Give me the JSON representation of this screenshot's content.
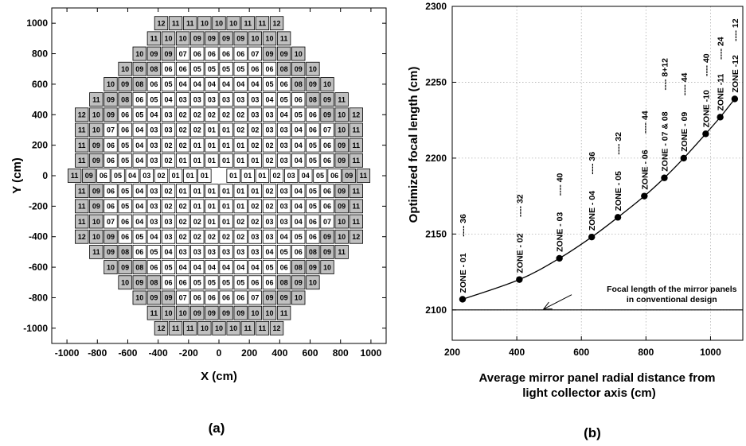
{
  "chart_data": [
    {
      "type": "heatmap",
      "panel_label": "(a)",
      "xlabel": "X  (cm)",
      "ylabel": "Y (cm)",
      "xlim": [
        -1100,
        1100
      ],
      "ylim": [
        -1100,
        1100
      ],
      "x_ticks": [
        "-1000",
        "-800",
        "-600",
        "-400",
        "-200",
        "0",
        "200",
        "400",
        "600",
        "800",
        "1000"
      ],
      "y_ticks": [
        "1000",
        "800",
        "600",
        "400",
        "200",
        "0",
        "-200",
        "-400",
        "-600",
        "-800",
        "-1000"
      ],
      "cell_pitch_cm": 95,
      "rows": [
        {
          "y": 1000,
          "cells": [
            "12",
            "11",
            "11",
            "10",
            "10",
            "10",
            "11",
            "11",
            "12"
          ]
        },
        {
          "y": 900,
          "cells": [
            "11",
            "10",
            "10",
            "09",
            "09",
            "09",
            "09",
            "10",
            "10",
            "11"
          ]
        },
        {
          "y": 800,
          "cells": [
            "10",
            "09",
            "09",
            "07",
            "06",
            "06",
            "06",
            "06",
            "07",
            "09",
            "09",
            "10"
          ]
        },
        {
          "y": 700,
          "cells": [
            "10",
            "09",
            "08",
            "06",
            "06",
            "05",
            "05",
            "05",
            "05",
            "06",
            "06",
            "08",
            "09",
            "10"
          ]
        },
        {
          "y": 600,
          "cells": [
            "10",
            "09",
            "08",
            "06",
            "05",
            "04",
            "04",
            "04",
            "04",
            "04",
            "04",
            "05",
            "06",
            "08",
            "09",
            "10"
          ]
        },
        {
          "y": 500,
          "cells": [
            "11",
            "09",
            "08",
            "06",
            "05",
            "04",
            "03",
            "03",
            "03",
            "03",
            "03",
            "03",
            "04",
            "05",
            "06",
            "08",
            "09",
            "11"
          ]
        },
        {
          "y": 400,
          "cells": [
            "12",
            "10",
            "09",
            "06",
            "05",
            "04",
            "03",
            "02",
            "02",
            "02",
            "02",
            "02",
            "03",
            "03",
            "04",
            "05",
            "06",
            "09",
            "10",
            "12"
          ]
        },
        {
          "y": 300,
          "cells": [
            "11",
            "10",
            "07",
            "06",
            "04",
            "03",
            "03",
            "02",
            "02",
            "01",
            "01",
            "02",
            "02",
            "03",
            "03",
            "04",
            "06",
            "07",
            "10",
            "11"
          ]
        },
        {
          "y": 200,
          "cells": [
            "11",
            "09",
            "06",
            "05",
            "04",
            "03",
            "02",
            "02",
            "01",
            "01",
            "01",
            "01",
            "02",
            "02",
            "03",
            "04",
            "05",
            "06",
            "09",
            "11"
          ]
        },
        {
          "y": 100,
          "cells": [
            "11",
            "09",
            "06",
            "05",
            "04",
            "03",
            "02",
            "01",
            "01",
            "01",
            "01",
            "01",
            "01",
            "02",
            "03",
            "04",
            "05",
            "06",
            "09",
            "11"
          ]
        },
        {
          "y": 0,
          "cells": [
            "11",
            "09",
            "06",
            "05",
            "04",
            "03",
            "02",
            "01",
            "01",
            "01",
            "",
            "01",
            "01",
            "01",
            "02",
            "03",
            "04",
            "05",
            "06",
            "09",
            "11"
          ]
        },
        {
          "y": -100,
          "cells": [
            "11",
            "09",
            "06",
            "05",
            "04",
            "03",
            "02",
            "01",
            "01",
            "01",
            "01",
            "01",
            "01",
            "02",
            "03",
            "04",
            "05",
            "06",
            "09",
            "11"
          ]
        },
        {
          "y": -200,
          "cells": [
            "11",
            "09",
            "06",
            "05",
            "04",
            "03",
            "02",
            "02",
            "01",
            "01",
            "01",
            "01",
            "02",
            "02",
            "03",
            "04",
            "05",
            "06",
            "09",
            "11"
          ]
        },
        {
          "y": -300,
          "cells": [
            "11",
            "10",
            "07",
            "06",
            "04",
            "03",
            "03",
            "02",
            "02",
            "01",
            "01",
            "02",
            "02",
            "03",
            "03",
            "04",
            "06",
            "07",
            "10",
            "11"
          ]
        },
        {
          "y": -400,
          "cells": [
            "12",
            "10",
            "09",
            "06",
            "05",
            "04",
            "03",
            "02",
            "02",
            "02",
            "02",
            "02",
            "03",
            "03",
            "04",
            "05",
            "06",
            "09",
            "10",
            "12"
          ]
        },
        {
          "y": -500,
          "cells": [
            "11",
            "09",
            "08",
            "06",
            "05",
            "04",
            "03",
            "03",
            "03",
            "03",
            "03",
            "03",
            "04",
            "05",
            "06",
            "08",
            "09",
            "11"
          ]
        },
        {
          "y": -600,
          "cells": [
            "10",
            "09",
            "08",
            "06",
            "05",
            "04",
            "04",
            "04",
            "04",
            "04",
            "04",
            "05",
            "06",
            "08",
            "09",
            "10"
          ]
        },
        {
          "y": -700,
          "cells": [
            "10",
            "09",
            "08",
            "06",
            "06",
            "05",
            "05",
            "05",
            "05",
            "06",
            "06",
            "08",
            "09",
            "10"
          ]
        },
        {
          "y": -800,
          "cells": [
            "10",
            "09",
            "09",
            "07",
            "06",
            "06",
            "06",
            "06",
            "07",
            "09",
            "09",
            "10"
          ]
        },
        {
          "y": -900,
          "cells": [
            "11",
            "10",
            "10",
            "09",
            "09",
            "09",
            "09",
            "10",
            "10",
            "11"
          ]
        },
        {
          "y": -1000,
          "cells": [
            "12",
            "11",
            "11",
            "10",
            "10",
            "10",
            "11",
            "11",
            "12"
          ]
        }
      ],
      "shaded_zones": [
        "08",
        "09",
        "10",
        "11",
        "12"
      ],
      "colors": {
        "shaded": "#c0c0c0",
        "plain": "#ffffff",
        "border": "#000000"
      }
    },
    {
      "type": "line",
      "panel_label": "(b)",
      "xlabel": "Average  mirror  panel  radial  distance  from light  collector  axis  (cm)",
      "xlabel_lines": [
        "Average  mirror  panel  radial  distance  from",
        "light  collector  axis  (cm)"
      ],
      "ylabel": "Optimized  focal  length  (cm)",
      "xlim": [
        200,
        1100
      ],
      "ylim": [
        2080,
        2300
      ],
      "x_ticks": [
        "200",
        "400",
        "600",
        "800",
        "1000"
      ],
      "y_ticks": [
        "2300",
        "2250",
        "2200",
        "2150",
        "2100"
      ],
      "series": [
        {
          "x": [
            232,
            408,
            532,
            632,
            713,
            795,
            857,
            917,
            985,
            1030,
            1075
          ],
          "y": [
            2107,
            2120,
            2134,
            2148,
            2161,
            2175,
            2187,
            2200,
            2216,
            2227,
            2239
          ]
        }
      ],
      "point_labels": [
        {
          "zone": "ZONE - 01",
          "count": "---- 36"
        },
        {
          "zone": "ZONE - 02",
          "count": "---- 32"
        },
        {
          "zone": "ZONE - 03",
          "count": "---- 40"
        },
        {
          "zone": "ZONE - 04",
          "count": "---- 36"
        },
        {
          "zone": "ZONE - 05",
          "count": "---- 32"
        },
        {
          "zone": "ZONE - 06",
          "count": "---- 44"
        },
        {
          "zone": "ZONE - 07 & 08",
          "count": "---- 8+12"
        },
        {
          "zone": "ZONE - 09",
          "count": "---- 44"
        },
        {
          "zone": "ZONE -10",
          "count": "---- 40"
        },
        {
          "zone": "ZONE -11",
          "count": "---- 24"
        },
        {
          "zone": "ZONE -12",
          "count": "---- 12"
        }
      ],
      "reference_line": {
        "y": 2100
      },
      "annotation": [
        "Focal length  of the mirror panels",
        "in conventional  design"
      ]
    }
  ]
}
